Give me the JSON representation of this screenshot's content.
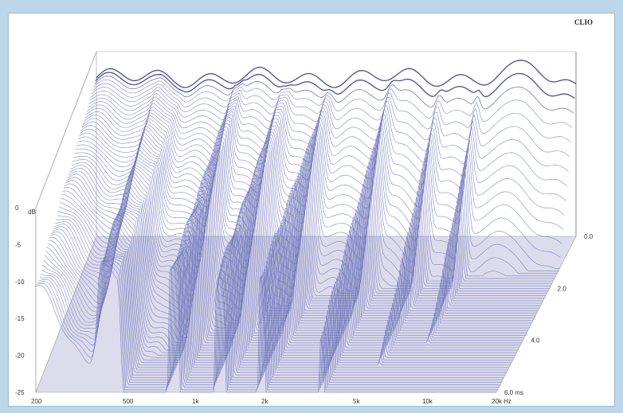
{
  "chart_data": {
    "type": "waterfall-3d",
    "brand": "CLIO",
    "ylabel": "dB",
    "y_ticks": [
      "0",
      "-5",
      "-10",
      "-15",
      "-20",
      "-25"
    ],
    "ylim": [
      -25,
      0
    ],
    "x_ticks": [
      "200",
      "500",
      "1k",
      "2k",
      "5k",
      "10k",
      "20k Hz"
    ],
    "x_tick_values_hz": [
      200,
      500,
      1000,
      2000,
      5000,
      10000,
      20000
    ],
    "xscale": "log",
    "xlim_hz": [
      200,
      20000
    ],
    "z_ticks": [
      "0.0",
      "2.0",
      "4.0",
      "6.0  ms"
    ],
    "z_tick_values_ms": [
      0,
      2,
      4,
      6
    ],
    "zlim_ms": [
      0,
      6
    ],
    "slice_count": 64,
    "colors": {
      "line": "#6f74b8",
      "line_dark": "#2c2f86",
      "floor": "#dcdcec",
      "frame": "#999999"
    }
  }
}
